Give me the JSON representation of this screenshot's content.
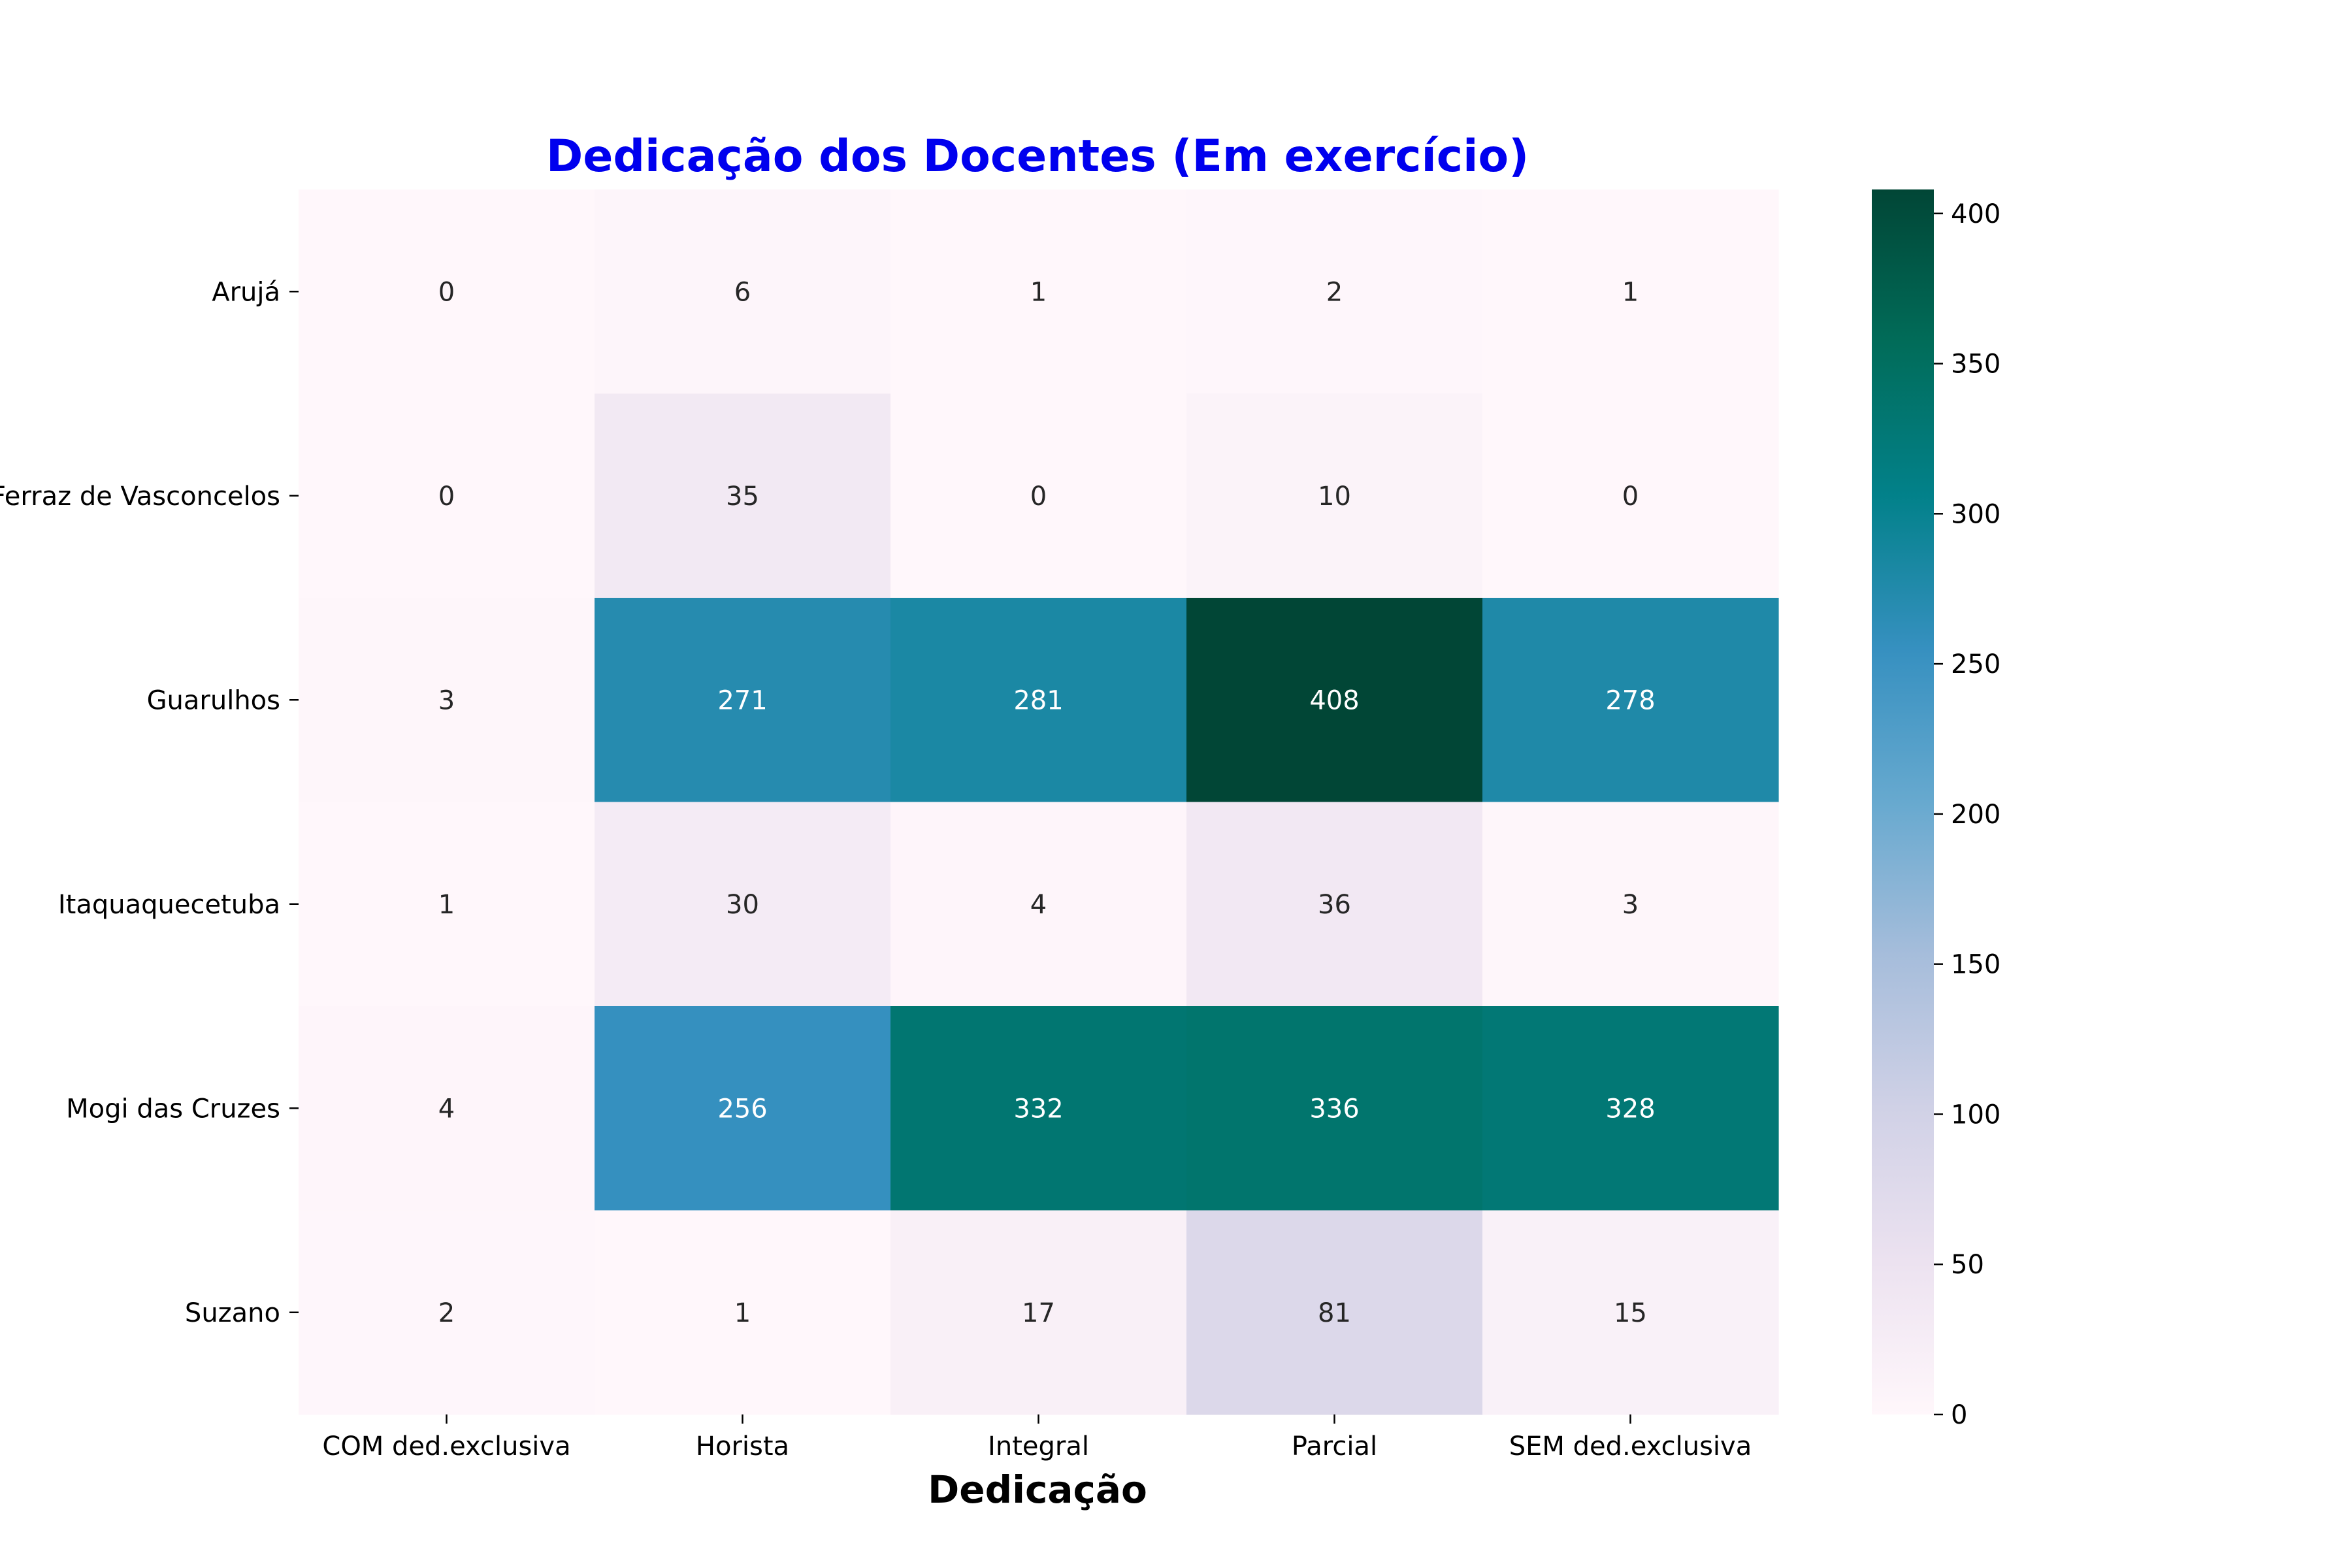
{
  "chart_data": {
    "type": "heatmap",
    "title": "Dedicação dos Docentes (Em exercício)",
    "title_color": "#0000ee",
    "xlabel": "Dedicação",
    "ylabel": "",
    "columns": [
      "COM ded.exclusiva",
      "Horista",
      "Integral",
      "Parcial",
      "SEM ded.exclusiva"
    ],
    "rows": [
      "Arujá",
      "Ferraz de Vasconcelos",
      "Guarulhos",
      "Itaquaquecetuba",
      "Mogi das Cruzes",
      "Suzano"
    ],
    "values": [
      [
        0,
        6,
        1,
        2,
        1
      ],
      [
        0,
        35,
        0,
        10,
        0
      ],
      [
        3,
        271,
        281,
        408,
        278
      ],
      [
        1,
        30,
        4,
        36,
        3
      ],
      [
        4,
        256,
        332,
        336,
        328
      ],
      [
        2,
        1,
        17,
        81,
        15
      ]
    ],
    "colormap": "PuBuGn",
    "colorbar": {
      "min": 0,
      "max": 408,
      "ticks": [
        0,
        50,
        100,
        150,
        200,
        250,
        300,
        350,
        400
      ]
    }
  }
}
